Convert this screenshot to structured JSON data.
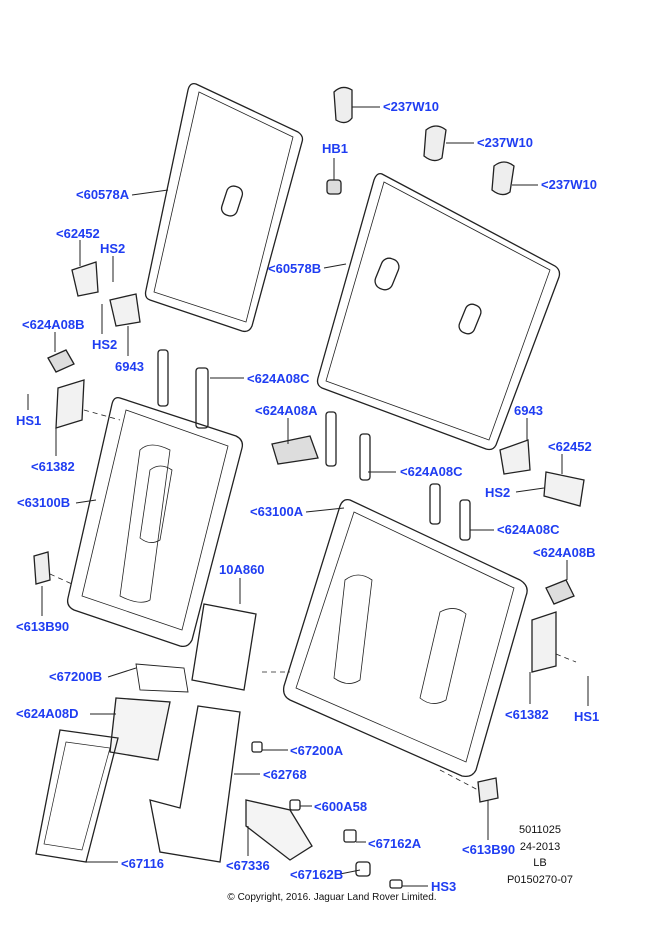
{
  "labels": [
    "<237W10",
    "HB1",
    "<237W10",
    "<237W10",
    "<60578A",
    "<60578B",
    "<62452",
    "HS2",
    "<624A08B",
    "HS2",
    "6943",
    "<624A08C",
    "HS1",
    "<624A08A",
    "6943",
    "<62452",
    "<61382",
    "<624A08C",
    "HS2",
    "<63100B",
    "<63100A",
    "<624A08C",
    "<624A08B",
    "10A860",
    "<613B90",
    "<67200B",
    "<61382",
    "HS1",
    "<624A08D",
    "<67200A",
    "<62768",
    "<600A58",
    "<67162A",
    "<613B90",
    "<67116",
    "<67336",
    "<67162B",
    "HS3"
  ],
  "reference": [
    "5011025",
    "24-2013",
    "LB",
    "P0150270-07"
  ],
  "copyright": "© Copyright, 2016. Jaguar Land Rover Limited.",
  "colors": {
    "label": "#1f3df2",
    "line": "#222222"
  }
}
